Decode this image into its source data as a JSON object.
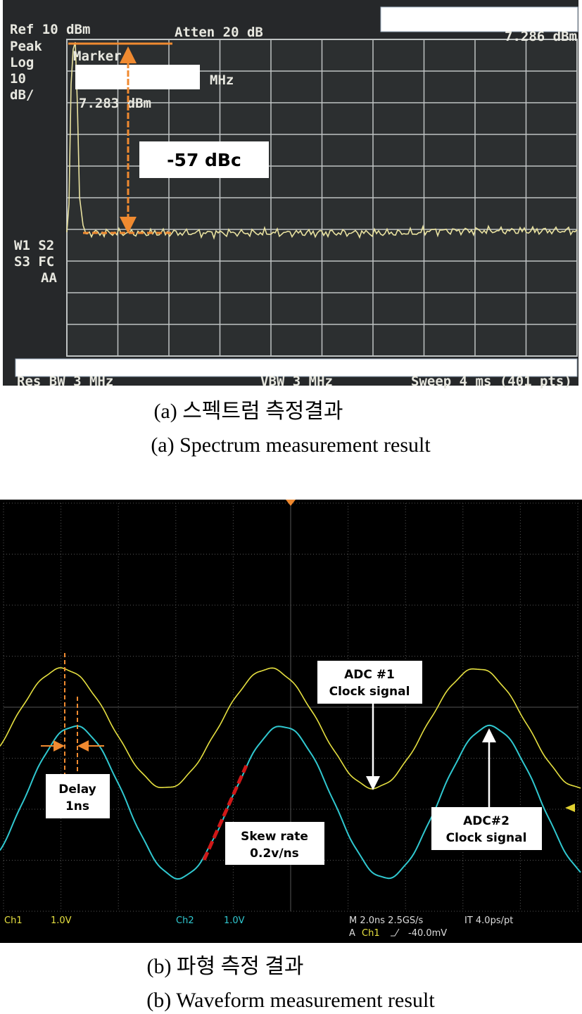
{
  "spectrum": {
    "screen": {
      "ref": "Ref 10 dBm",
      "atten": "Atten 20 dB",
      "detector": "Peak",
      "scale_type": "Log",
      "scale_value": "10",
      "scale_unit": "dB/",
      "marker_label": "Marker",
      "marker_unit": "MHz",
      "marker_level": "7.283 dBm",
      "top_right_level": "7.286 dBm",
      "annotation": "-57 dBc",
      "trace_mode_1": "W1 S2",
      "trace_mode_2": "S3 FC",
      "trace_mode_3": "AA",
      "res_bw": "Res BW 3 MHz",
      "vbw": "VBW 3 MHz",
      "sweep": "Sweep 4 ms (401 pts)"
    },
    "caption_ko": "(a) 스펙트럼 측정결과",
    "caption_en": "(a) Spectrum measurement result"
  },
  "waveform": {
    "screen": {
      "ch1": "Ch1",
      "ch1_scale": "1.0V",
      "ch2": "Ch2",
      "ch2_scale": "1.0V",
      "timebase": "M 2.0ns 2.5GS/s",
      "interp": "IT 4.0ps/pt",
      "trigger_mode": "A",
      "trigger_source": "Ch1",
      "trigger_level": "-40.0mV"
    },
    "annotations": {
      "adc1_title": "ADC #1",
      "adc1_sub": "Clock signal",
      "adc2_title": "ADC#2",
      "adc2_sub": "Clock signal",
      "delay_title": "Delay",
      "delay_value": "1ns",
      "skew_title": "Skew rate",
      "skew_value": "0.2v/ns"
    },
    "caption_ko": "(b) 파형 측정 결과",
    "caption_en": "(b) Waveform measurement result"
  }
}
